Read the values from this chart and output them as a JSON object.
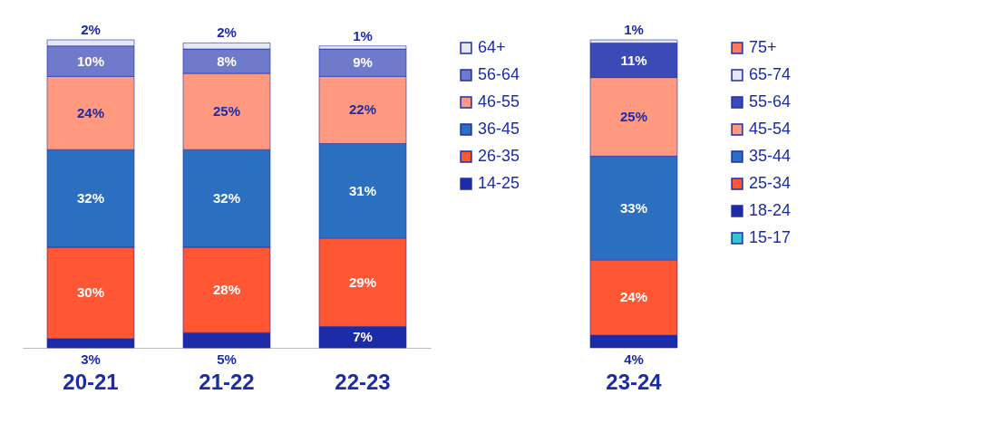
{
  "chart_data": [
    {
      "type": "bar",
      "stacked": true,
      "legend": "right",
      "categories": [
        "20-21",
        "21-22",
        "22-23"
      ],
      "series": [
        {
          "name": "14-25",
          "color": "#1c2ca8",
          "values": [
            3,
            5,
            7
          ],
          "value_labels": [
            "3%",
            "5%",
            "7%"
          ]
        },
        {
          "name": "26-35",
          "color": "#ff5733",
          "values": [
            30,
            28,
            29
          ],
          "value_labels": [
            "30%",
            "28%",
            "29%"
          ]
        },
        {
          "name": "36-45",
          "color": "#2a6fc0",
          "values": [
            32,
            32,
            31
          ],
          "value_labels": [
            "32%",
            "32%",
            "31%"
          ]
        },
        {
          "name": "46-55",
          "color": "#ff9a80",
          "values": [
            24,
            25,
            22
          ],
          "value_labels": [
            "24%",
            "25%",
            "22%"
          ]
        },
        {
          "name": "56-64",
          "color": "#6f7acb",
          "values": [
            10,
            8,
            9
          ],
          "value_labels": [
            "10%",
            "8%",
            "9%"
          ]
        },
        {
          "name": "64+",
          "color": "#e6e8f6",
          "values": [
            2,
            2,
            1
          ],
          "value_labels": [
            "2%",
            "2%",
            "1%"
          ]
        }
      ]
    },
    {
      "type": "bar",
      "stacked": true,
      "legend": "right",
      "categories": [
        "23-24"
      ],
      "series": [
        {
          "name": "15-17",
          "color": "#33c6cc",
          "values": [
            null
          ],
          "value_labels": [
            null
          ]
        },
        {
          "name": "18-24",
          "color": "#1c2ca8",
          "values": [
            4
          ],
          "value_labels": [
            "4%"
          ]
        },
        {
          "name": "25-34",
          "color": "#ff5733",
          "values": [
            24
          ],
          "value_labels": [
            "24%"
          ]
        },
        {
          "name": "35-44",
          "color": "#2a6fc0",
          "values": [
            33
          ],
          "value_labels": [
            "33%"
          ]
        },
        {
          "name": "45-54",
          "color": "#ff9a80",
          "values": [
            25
          ],
          "value_labels": [
            "25%"
          ]
        },
        {
          "name": "55-64",
          "color": "#3a4bb8",
          "values": [
            11
          ],
          "value_labels": [
            "11%"
          ]
        },
        {
          "name": "65-74",
          "color": "#e6e8f6",
          "values": [
            1
          ],
          "value_labels": [
            "1%"
          ]
        },
        {
          "name": "75+",
          "color": "#ff7a5a",
          "values": [
            null
          ],
          "value_labels": [
            null
          ]
        }
      ]
    }
  ]
}
